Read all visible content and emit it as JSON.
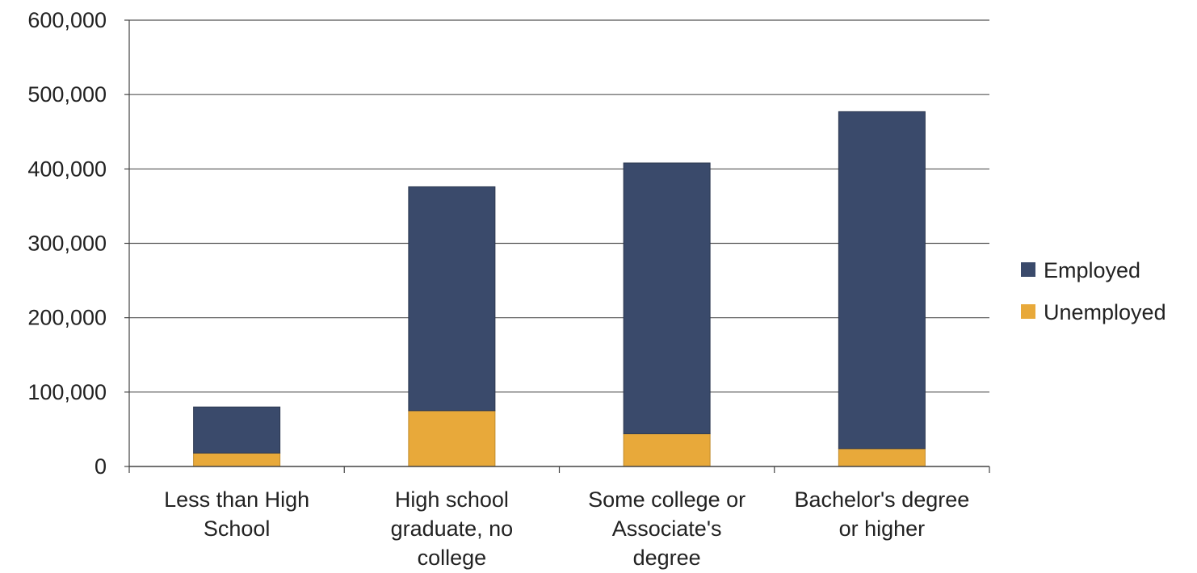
{
  "chart_data": {
    "type": "bar",
    "stacked": true,
    "categories": [
      [
        "Less than High",
        "School"
      ],
      [
        "High school",
        "graduate, no",
        "college"
      ],
      [
        "Some college or",
        "Associate's",
        "degree"
      ],
      [
        "Bachelor's degree",
        "or higher"
      ]
    ],
    "series": [
      {
        "name": "Unemployed",
        "values": [
          18000,
          75000,
          44000,
          24000
        ],
        "color": "#E8A93A"
      },
      {
        "name": "Employed",
        "values": [
          62000,
          301000,
          364000,
          453000
        ],
        "color": "#3A4A6B"
      }
    ],
    "ylim": [
      0,
      600000
    ],
    "yticks": [
      0,
      100000,
      200000,
      300000,
      400000,
      500000,
      600000
    ],
    "ytick_labels": [
      "0",
      "100,000",
      "200,000",
      "300,000",
      "400,000",
      "500,000",
      "600,000"
    ],
    "grid": true,
    "legend": {
      "position": "right",
      "items": [
        "Employed",
        "Unemployed"
      ]
    },
    "title": "",
    "xlabel": "",
    "ylabel": ""
  }
}
